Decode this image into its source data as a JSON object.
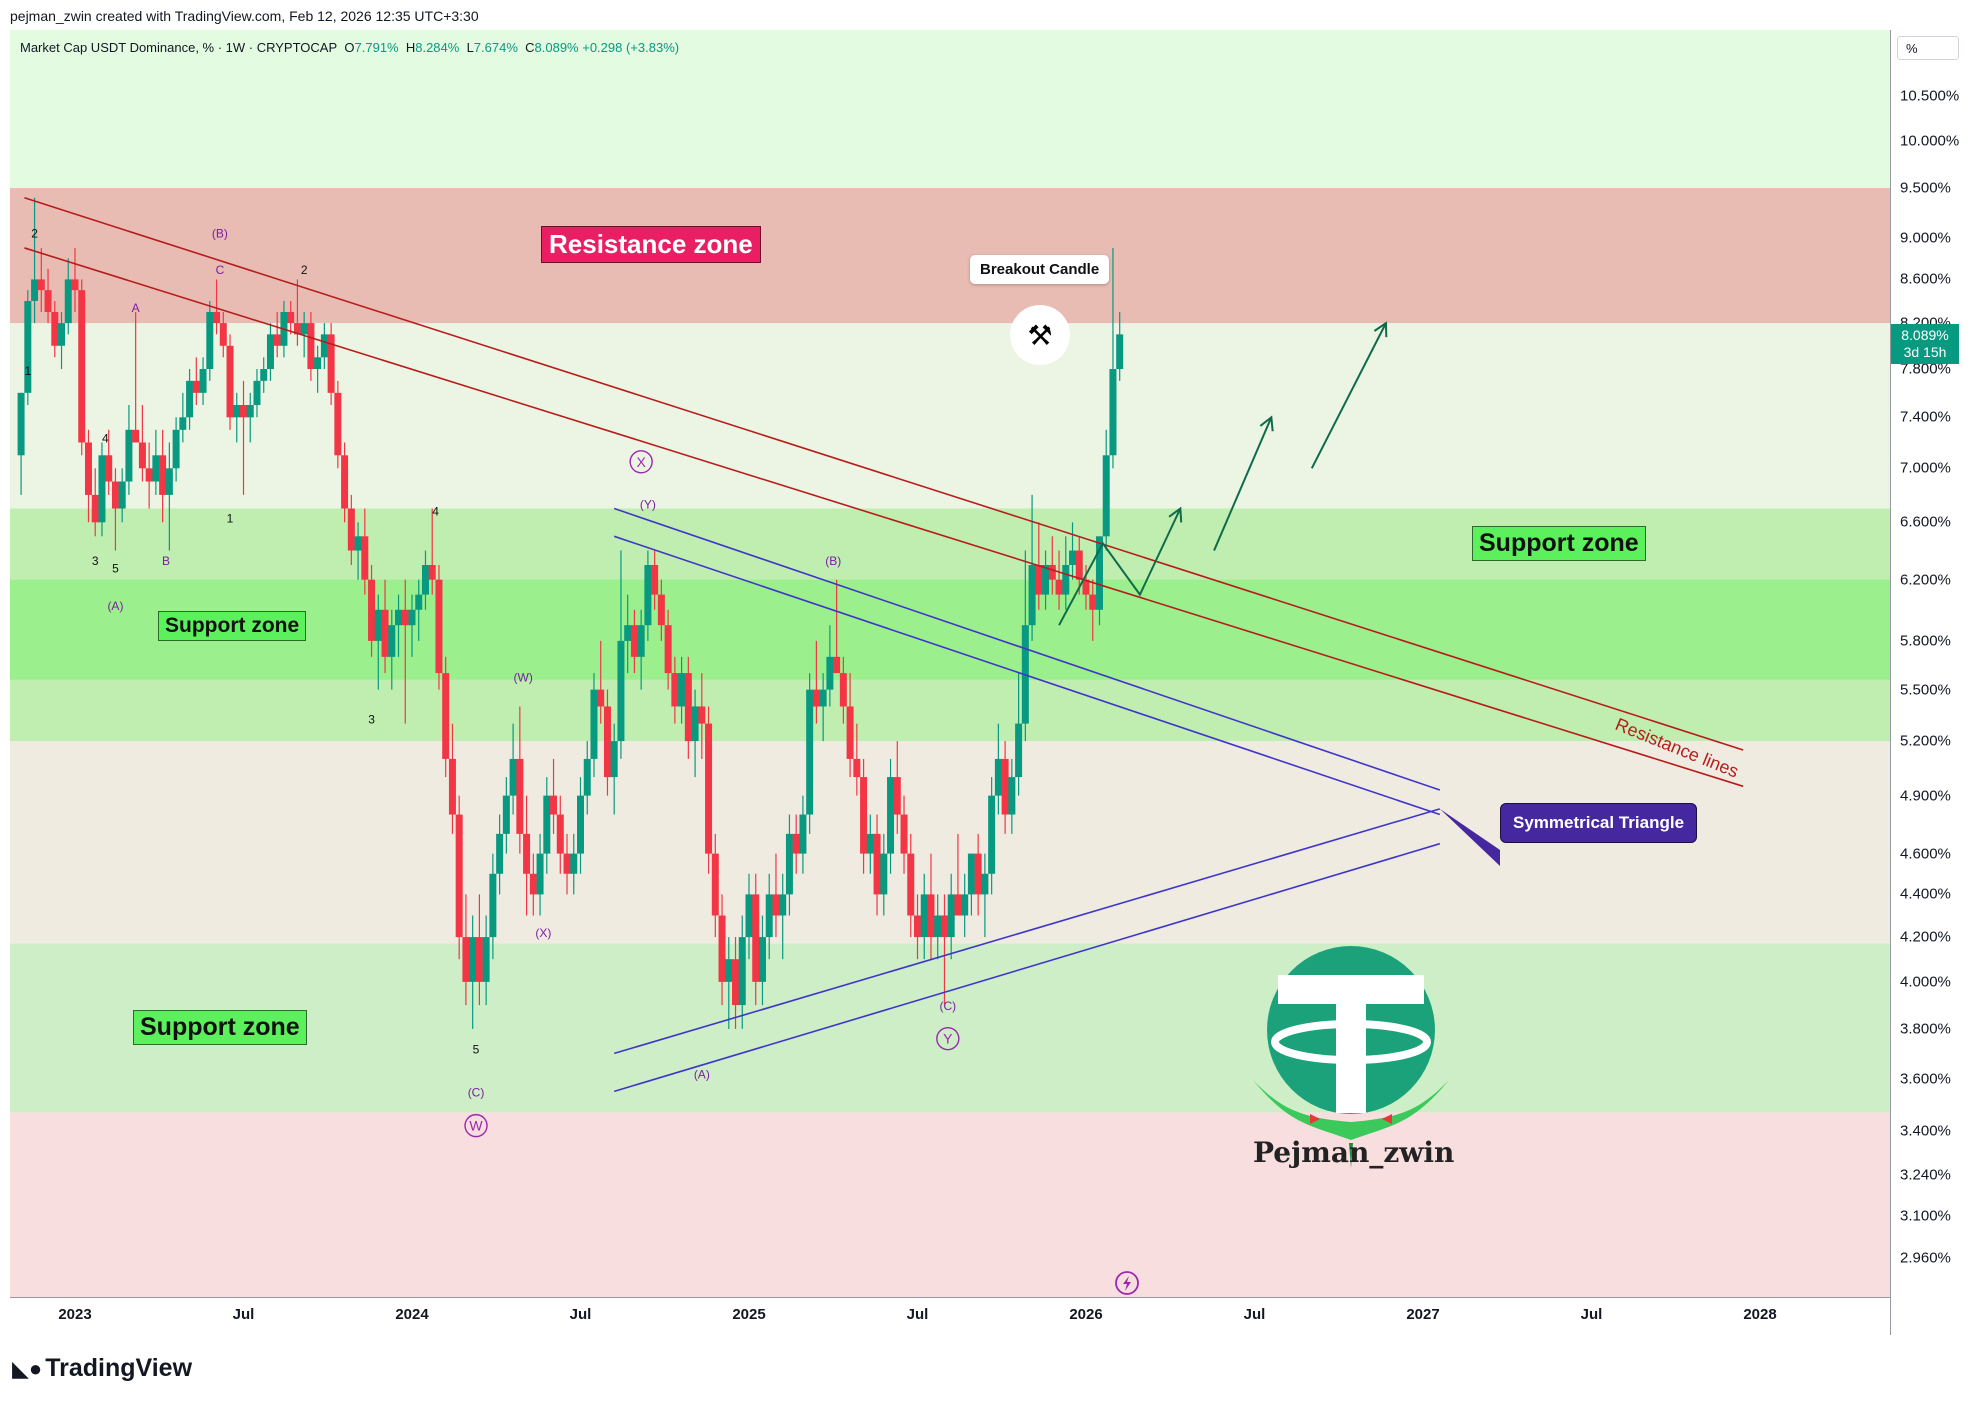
{
  "header": {
    "credit": "pejman_zwin created with TradingView.com, Feb 12, 2026 12:35 UTC+3:30"
  },
  "legend": {
    "symbol": "Market Cap USDT Dominance, % · 1W · CRYPTOCAP",
    "o_key": "O",
    "o_val": "7.791%",
    "h_key": "H",
    "h_val": "8.284%",
    "l_key": "L",
    "l_val": "7.674%",
    "c_key": "C",
    "c_val": "8.089%",
    "change": "+0.298 (+3.83%)"
  },
  "axis": {
    "unit_button": "%",
    "price_tag_value": "8.089%",
    "price_tag_countdown": "3d 15h"
  },
  "annotations": {
    "resistance_zone": "Resistance zone",
    "support_zone_right": "Support zone",
    "support_zone_left": "Support zone",
    "support_zone_bottom": "Support zone",
    "breakout_candle": "Breakout Candle",
    "symmetrical_triangle": "Symmetrical Triangle",
    "resistance_lines": "Resistance lines",
    "watermark": "Pejman_zwin"
  },
  "wave_labels": [
    {
      "t": "2",
      "d": 2022.88,
      "p": 9.0,
      "c": "black"
    },
    {
      "t": "1",
      "d": 2022.86,
      "p": 7.75,
      "c": "black"
    },
    {
      "t": "A",
      "d": 2023.18,
      "p": 8.3,
      "c": "purple"
    },
    {
      "t": "(B)",
      "d": 2023.43,
      "p": 9.0,
      "c": "purple"
    },
    {
      "t": "C",
      "d": 2023.43,
      "p": 8.65,
      "c": "purple"
    },
    {
      "t": "2",
      "d": 2023.68,
      "p": 8.65,
      "c": "black"
    },
    {
      "t": "4",
      "d": 2023.09,
      "p": 7.2,
      "c": "black"
    },
    {
      "t": "1",
      "d": 2023.46,
      "p": 6.6,
      "c": "black"
    },
    {
      "t": "3",
      "d": 2023.06,
      "p": 6.3,
      "c": "black"
    },
    {
      "t": "5",
      "d": 2023.12,
      "p": 6.25,
      "c": "black"
    },
    {
      "t": "B",
      "d": 2023.27,
      "p": 6.3,
      "c": "purple"
    },
    {
      "t": "(A)",
      "d": 2023.12,
      "p": 6.0,
      "c": "purple"
    },
    {
      "t": "4",
      "d": 2024.07,
      "p": 6.65,
      "c": "black"
    },
    {
      "t": "3",
      "d": 2023.88,
      "p": 5.3,
      "c": "black"
    },
    {
      "t": "(W)",
      "d": 2024.33,
      "p": 5.55,
      "c": "purple"
    },
    {
      "t": "(X)",
      "d": 2024.39,
      "p": 4.2,
      "c": "purple"
    },
    {
      "t": "5",
      "d": 2024.19,
      "p": 3.7,
      "c": "black"
    },
    {
      "t": "(C)",
      "d": 2024.19,
      "p": 3.53,
      "c": "purple"
    },
    {
      "t": "(Y)",
      "d": 2024.7,
      "p": 6.7,
      "c": "purple"
    },
    {
      "t": "(B)",
      "d": 2025.25,
      "p": 6.3,
      "c": "purple"
    },
    {
      "t": "(A)",
      "d": 2024.86,
      "p": 3.6,
      "c": "purple"
    },
    {
      "t": "(C)",
      "d": 2025.59,
      "p": 3.88,
      "c": "purple"
    }
  ],
  "circle_labels": [
    {
      "t": "X",
      "d": 2024.68,
      "p": 7.05
    },
    {
      "t": "W",
      "d": 2024.19,
      "p": 3.42
    },
    {
      "t": "Y",
      "d": 2025.59,
      "p": 3.76
    }
  ],
  "chart_data": {
    "type": "candlestick",
    "scale": "log",
    "y_unit": "%",
    "y_ticks": [
      "10.500%",
      "10.000%",
      "9.500%",
      "9.000%",
      "8.600%",
      "8.200%",
      "7.800%",
      "7.400%",
      "7.000%",
      "6.600%",
      "6.200%",
      "5.800%",
      "5.500%",
      "5.200%",
      "4.900%",
      "4.600%",
      "4.400%",
      "4.200%",
      "4.000%",
      "3.800%",
      "3.600%",
      "3.400%",
      "3.240%",
      "3.100%",
      "2.960%"
    ],
    "x_ticks": [
      "2023",
      "Jul",
      "2024",
      "Jul",
      "2025",
      "Jul",
      "2026",
      "Jul",
      "2027",
      "Jul",
      "2028"
    ],
    "x_tick_dates": [
      2023.0,
      2023.5,
      2024.0,
      2024.5,
      2025.0,
      2025.5,
      2026.0,
      2026.5,
      2027.0,
      2027.5,
      2028.0
    ],
    "last": {
      "open": 7.791,
      "high": 8.284,
      "low": 7.674,
      "close": 8.089
    },
    "zones": [
      {
        "kind": "resistance",
        "from": 8.2,
        "to": 9.5
      },
      {
        "kind": "support",
        "from": 5.2,
        "to": 6.7
      },
      {
        "kind": "support",
        "from": 3.47,
        "to": 4.17
      }
    ],
    "trendlines": [
      {
        "name": "resistance",
        "color": "#b71c1c",
        "p1": [
          2022.85,
          9.4
        ],
        "p2": [
          2027.95,
          5.15
        ]
      },
      {
        "name": "resistance",
        "color": "#b71c1c",
        "p1": [
          2022.85,
          8.9
        ],
        "p2": [
          2027.95,
          4.95
        ]
      },
      {
        "name": "triangle",
        "color": "#3f36c9",
        "p1": [
          2024.6,
          6.7
        ],
        "p2": [
          2027.05,
          4.93
        ]
      },
      {
        "name": "triangle",
        "color": "#3f36c9",
        "p1": [
          2024.6,
          6.5
        ],
        "p2": [
          2027.05,
          4.8
        ]
      },
      {
        "name": "triangle",
        "color": "#3f36c9",
        "p1": [
          2024.6,
          3.7
        ],
        "p2": [
          2027.05,
          4.83
        ]
      },
      {
        "name": "triangle",
        "color": "#3f36c9",
        "p1": [
          2024.6,
          3.55
        ],
        "p2": [
          2027.05,
          4.65
        ]
      }
    ],
    "projection_arrows": [
      [
        [
          2025.92,
          5.9
        ],
        [
          2026.05,
          6.45
        ],
        [
          2026.16,
          6.1
        ],
        [
          2026.28,
          6.7
        ]
      ],
      [
        [
          2026.38,
          6.4
        ],
        [
          2026.55,
          7.4
        ]
      ],
      [
        [
          2026.67,
          7.0
        ],
        [
          2026.89,
          8.2
        ]
      ]
    ],
    "candles": [
      [
        2022.84,
        7.1,
        7.6,
        6.8,
        7.6
      ],
      [
        2022.86,
        7.6,
        8.5,
        7.5,
        8.4
      ],
      [
        2022.88,
        8.4,
        9.4,
        8.2,
        8.6
      ],
      [
        2022.9,
        8.6,
        8.9,
        8.3,
        8.5
      ],
      [
        2022.92,
        8.5,
        8.7,
        8.2,
        8.3
      ],
      [
        2022.94,
        8.3,
        8.4,
        7.9,
        8.0
      ],
      [
        2022.96,
        8.0,
        8.3,
        7.8,
        8.2
      ],
      [
        2022.98,
        8.2,
        8.8,
        8.1,
        8.6
      ],
      [
        2023.0,
        8.6,
        8.9,
        8.3,
        8.5
      ],
      [
        2023.02,
        8.5,
        8.6,
        7.1,
        7.2
      ],
      [
        2023.04,
        7.2,
        7.3,
        6.6,
        6.8
      ],
      [
        2023.06,
        6.8,
        7.0,
        6.5,
        6.6
      ],
      [
        2023.08,
        6.6,
        7.2,
        6.5,
        7.1
      ],
      [
        2023.1,
        7.1,
        7.3,
        6.8,
        6.9
      ],
      [
        2023.12,
        6.9,
        7.0,
        6.4,
        6.7
      ],
      [
        2023.14,
        6.7,
        7.0,
        6.6,
        6.9
      ],
      [
        2023.16,
        6.9,
        7.5,
        6.8,
        7.3
      ],
      [
        2023.18,
        7.3,
        8.3,
        7.2,
        7.2
      ],
      [
        2023.2,
        7.2,
        7.5,
        6.9,
        7.0
      ],
      [
        2023.22,
        7.0,
        7.2,
        6.7,
        6.9
      ],
      [
        2023.24,
        6.9,
        7.3,
        6.8,
        7.1
      ],
      [
        2023.26,
        7.1,
        7.3,
        6.6,
        6.8
      ],
      [
        2023.28,
        6.8,
        7.2,
        6.4,
        7.0
      ],
      [
        2023.3,
        7.0,
        7.4,
        6.9,
        7.3
      ],
      [
        2023.32,
        7.3,
        7.6,
        7.2,
        7.4
      ],
      [
        2023.34,
        7.4,
        7.8,
        7.3,
        7.7
      ],
      [
        2023.36,
        7.7,
        7.9,
        7.5,
        7.6
      ],
      [
        2023.38,
        7.6,
        7.9,
        7.5,
        7.8
      ],
      [
        2023.4,
        7.8,
        8.4,
        7.7,
        8.3
      ],
      [
        2023.42,
        8.3,
        8.6,
        8.1,
        8.2
      ],
      [
        2023.44,
        8.2,
        8.3,
        7.9,
        8.0
      ],
      [
        2023.46,
        8.0,
        8.1,
        7.3,
        7.4
      ],
      [
        2023.48,
        7.4,
        7.6,
        7.2,
        7.5
      ],
      [
        2023.5,
        7.5,
        7.7,
        6.8,
        7.4
      ],
      [
        2023.52,
        7.4,
        7.6,
        7.2,
        7.5
      ],
      [
        2023.54,
        7.5,
        7.8,
        7.4,
        7.7
      ],
      [
        2023.56,
        7.7,
        7.9,
        7.6,
        7.8
      ],
      [
        2023.58,
        7.8,
        8.2,
        7.7,
        8.1
      ],
      [
        2023.6,
        8.1,
        8.3,
        7.9,
        8.0
      ],
      [
        2023.62,
        8.0,
        8.4,
        7.9,
        8.3
      ],
      [
        2023.64,
        8.3,
        8.4,
        8.1,
        8.2
      ],
      [
        2023.66,
        8.2,
        8.6,
        8.0,
        8.1
      ],
      [
        2023.68,
        8.1,
        8.3,
        7.9,
        8.2
      ],
      [
        2023.7,
        8.2,
        8.3,
        7.7,
        7.8
      ],
      [
        2023.72,
        7.8,
        8.0,
        7.6,
        7.9
      ],
      [
        2023.74,
        7.9,
        8.2,
        7.8,
        8.1
      ],
      [
        2023.76,
        8.1,
        8.2,
        7.5,
        7.6
      ],
      [
        2023.78,
        7.6,
        7.7,
        7.0,
        7.1
      ],
      [
        2023.8,
        7.1,
        7.2,
        6.6,
        6.7
      ],
      [
        2023.82,
        6.7,
        6.8,
        6.3,
        6.4
      ],
      [
        2023.84,
        6.4,
        6.6,
        6.2,
        6.5
      ],
      [
        2023.86,
        6.5,
        6.7,
        6.1,
        6.2
      ],
      [
        2023.88,
        6.2,
        6.3,
        5.7,
        5.8
      ],
      [
        2023.9,
        5.8,
        6.1,
        5.5,
        6.0
      ],
      [
        2023.92,
        6.0,
        6.2,
        5.6,
        5.7
      ],
      [
        2023.94,
        5.7,
        6.0,
        5.5,
        5.9
      ],
      [
        2023.96,
        5.9,
        6.1,
        5.7,
        6.0
      ],
      [
        2023.98,
        6.0,
        6.2,
        5.3,
        5.9
      ],
      [
        2024.0,
        5.9,
        6.1,
        5.7,
        6.0
      ],
      [
        2024.02,
        6.0,
        6.2,
        5.8,
        6.1
      ],
      [
        2024.04,
        6.1,
        6.4,
        6.0,
        6.3
      ],
      [
        2024.06,
        6.3,
        6.7,
        6.1,
        6.2
      ],
      [
        2024.08,
        6.2,
        6.3,
        5.5,
        5.6
      ],
      [
        2024.1,
        5.6,
        5.7,
        5.0,
        5.1
      ],
      [
        2024.12,
        5.1,
        5.3,
        4.7,
        4.8
      ],
      [
        2024.14,
        4.8,
        4.9,
        4.1,
        4.2
      ],
      [
        2024.16,
        4.2,
        4.4,
        3.9,
        4.0
      ],
      [
        2024.18,
        4.0,
        4.3,
        3.8,
        4.2
      ],
      [
        2024.2,
        4.2,
        4.4,
        3.9,
        4.0
      ],
      [
        2024.22,
        4.0,
        4.3,
        3.9,
        4.2
      ],
      [
        2024.24,
        4.2,
        4.6,
        4.1,
        4.5
      ],
      [
        2024.26,
        4.5,
        4.8,
        4.4,
        4.7
      ],
      [
        2024.28,
        4.7,
        5.0,
        4.6,
        4.9
      ],
      [
        2024.3,
        4.9,
        5.3,
        4.8,
        5.1
      ],
      [
        2024.32,
        5.1,
        5.4,
        4.6,
        4.7
      ],
      [
        2024.34,
        4.7,
        4.9,
        4.3,
        4.5
      ],
      [
        2024.36,
        4.5,
        4.6,
        4.3,
        4.4
      ],
      [
        2024.38,
        4.4,
        4.7,
        4.3,
        4.6
      ],
      [
        2024.4,
        4.6,
        5.0,
        4.5,
        4.9
      ],
      [
        2024.42,
        4.9,
        5.1,
        4.7,
        4.8
      ],
      [
        2024.44,
        4.8,
        4.9,
        4.5,
        4.6
      ],
      [
        2024.46,
        4.6,
        4.7,
        4.4,
        4.5
      ],
      [
        2024.48,
        4.5,
        4.7,
        4.4,
        4.6
      ],
      [
        2024.5,
        4.6,
        5.0,
        4.5,
        4.9
      ],
      [
        2024.52,
        4.9,
        5.2,
        4.8,
        5.1
      ],
      [
        2024.54,
        5.1,
        5.6,
        5.0,
        5.5
      ],
      [
        2024.56,
        5.5,
        5.8,
        5.3,
        5.4
      ],
      [
        2024.58,
        5.4,
        5.5,
        4.9,
        5.0
      ],
      [
        2024.6,
        5.0,
        5.3,
        4.8,
        5.2
      ],
      [
        2024.62,
        5.2,
        6.4,
        5.1,
        5.8
      ],
      [
        2024.64,
        5.8,
        6.1,
        5.6,
        5.9
      ],
      [
        2024.66,
        5.9,
        6.0,
        5.6,
        5.7
      ],
      [
        2024.68,
        5.7,
        6.0,
        5.5,
        5.9
      ],
      [
        2024.7,
        5.9,
        6.4,
        5.8,
        6.3
      ],
      [
        2024.72,
        6.3,
        6.4,
        6.0,
        6.1
      ],
      [
        2024.74,
        6.1,
        6.2,
        5.8,
        5.9
      ],
      [
        2024.76,
        5.9,
        6.0,
        5.5,
        5.6
      ],
      [
        2024.78,
        5.6,
        5.7,
        5.3,
        5.4
      ],
      [
        2024.8,
        5.4,
        5.7,
        5.3,
        5.6
      ],
      [
        2024.82,
        5.6,
        5.7,
        5.1,
        5.2
      ],
      [
        2024.84,
        5.2,
        5.5,
        5.0,
        5.4
      ],
      [
        2024.86,
        5.4,
        5.6,
        5.1,
        5.3
      ],
      [
        2024.88,
        5.3,
        5.4,
        4.5,
        4.6
      ],
      [
        2024.9,
        4.6,
        4.7,
        4.2,
        4.3
      ],
      [
        2024.92,
        4.3,
        4.4,
        3.9,
        4.0
      ],
      [
        2024.94,
        4.0,
        4.2,
        3.8,
        4.1
      ],
      [
        2024.96,
        4.1,
        4.2,
        3.8,
        3.9
      ],
      [
        2024.98,
        3.9,
        4.3,
        3.8,
        4.2
      ],
      [
        2025.0,
        4.2,
        4.5,
        4.1,
        4.4
      ],
      [
        2025.02,
        4.4,
        4.5,
        3.9,
        4.0
      ],
      [
        2025.04,
        4.0,
        4.3,
        3.9,
        4.2
      ],
      [
        2025.06,
        4.2,
        4.5,
        4.1,
        4.4
      ],
      [
        2025.08,
        4.4,
        4.6,
        4.2,
        4.3
      ],
      [
        2025.1,
        4.3,
        4.5,
        4.1,
        4.4
      ],
      [
        2025.12,
        4.4,
        4.8,
        4.3,
        4.7
      ],
      [
        2025.14,
        4.7,
        4.8,
        4.5,
        4.6
      ],
      [
        2025.16,
        4.6,
        4.9,
        4.5,
        4.8
      ],
      [
        2025.18,
        4.8,
        5.6,
        4.7,
        5.5
      ],
      [
        2025.2,
        5.5,
        5.8,
        5.3,
        5.4
      ],
      [
        2025.22,
        5.4,
        5.6,
        5.2,
        5.5
      ],
      [
        2025.24,
        5.5,
        5.9,
        5.4,
        5.7
      ],
      [
        2025.26,
        5.7,
        6.2,
        5.6,
        5.6
      ],
      [
        2025.28,
        5.6,
        5.7,
        5.3,
        5.4
      ],
      [
        2025.3,
        5.4,
        5.6,
        5.0,
        5.1
      ],
      [
        2025.32,
        5.1,
        5.3,
        4.9,
        5.0
      ],
      [
        2025.34,
        5.0,
        5.1,
        4.5,
        4.6
      ],
      [
        2025.36,
        4.6,
        4.8,
        4.5,
        4.7
      ],
      [
        2025.38,
        4.7,
        4.8,
        4.3,
        4.4
      ],
      [
        2025.4,
        4.4,
        4.7,
        4.3,
        4.6
      ],
      [
        2025.42,
        4.6,
        5.1,
        4.5,
        5.0
      ],
      [
        2025.44,
        5.0,
        5.2,
        4.7,
        4.8
      ],
      [
        2025.46,
        4.8,
        4.9,
        4.5,
        4.6
      ],
      [
        2025.48,
        4.6,
        4.7,
        4.2,
        4.3
      ],
      [
        2025.5,
        4.3,
        4.4,
        4.1,
        4.2
      ],
      [
        2025.52,
        4.2,
        4.5,
        4.1,
        4.4
      ],
      [
        2025.54,
        4.4,
        4.6,
        4.1,
        4.2
      ],
      [
        2025.56,
        4.2,
        4.4,
        4.1,
        4.3
      ],
      [
        2025.58,
        4.3,
        4.4,
        3.9,
        4.2
      ],
      [
        2025.6,
        4.2,
        4.5,
        4.1,
        4.4
      ],
      [
        2025.62,
        4.4,
        4.7,
        4.3,
        4.3
      ],
      [
        2025.64,
        4.3,
        4.5,
        4.2,
        4.4
      ],
      [
        2025.66,
        4.4,
        4.6,
        4.3,
        4.6
      ],
      [
        2025.68,
        4.6,
        4.7,
        4.3,
        4.4
      ],
      [
        2025.7,
        4.4,
        4.6,
        4.2,
        4.5
      ],
      [
        2025.72,
        4.5,
        5.0,
        4.4,
        4.9
      ],
      [
        2025.74,
        4.9,
        5.3,
        4.8,
        5.1
      ],
      [
        2025.76,
        5.1,
        5.2,
        4.7,
        4.8
      ],
      [
        2025.78,
        4.8,
        5.1,
        4.7,
        5.0
      ],
      [
        2025.8,
        5.0,
        5.6,
        4.9,
        5.3
      ],
      [
        2025.82,
        5.3,
        6.4,
        5.2,
        5.9
      ],
      [
        2025.84,
        5.9,
        6.8,
        5.8,
        6.3
      ],
      [
        2025.86,
        6.3,
        6.6,
        6.0,
        6.1
      ],
      [
        2025.88,
        6.1,
        6.4,
        6.0,
        6.3
      ],
      [
        2025.9,
        6.3,
        6.5,
        6.1,
        6.2
      ],
      [
        2025.92,
        6.2,
        6.4,
        6.0,
        6.1
      ],
      [
        2025.94,
        6.1,
        6.5,
        6.0,
        6.3
      ],
      [
        2025.96,
        6.3,
        6.6,
        6.2,
        6.4
      ],
      [
        2025.98,
        6.4,
        6.5,
        6.1,
        6.2
      ],
      [
        2026.0,
        6.2,
        6.3,
        6.0,
        6.1
      ],
      [
        2026.02,
        6.1,
        6.2,
        5.8,
        6.0
      ],
      [
        2026.04,
        6.0,
        6.5,
        5.9,
        6.5
      ],
      [
        2026.06,
        6.5,
        7.3,
        6.4,
        7.1
      ],
      [
        2026.08,
        7.1,
        8.9,
        7.0,
        7.8
      ],
      [
        2026.1,
        7.8,
        8.3,
        7.7,
        8.1
      ]
    ]
  }
}
